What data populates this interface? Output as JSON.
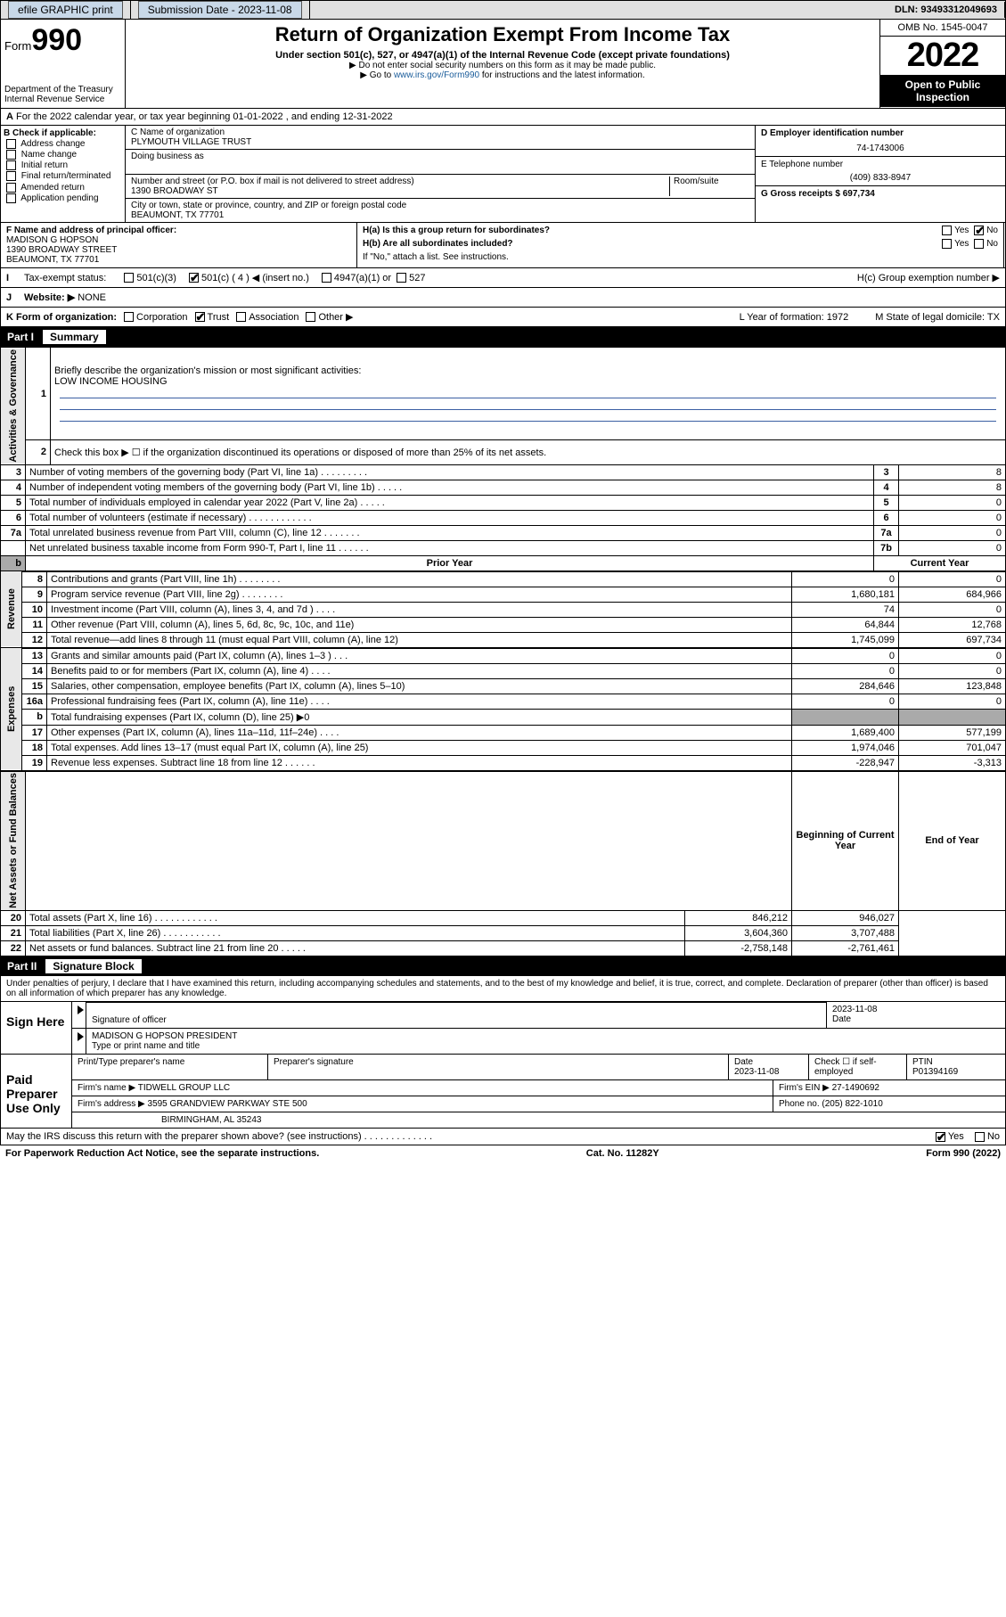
{
  "topbar": {
    "efile": "efile GRAPHIC print",
    "subdate_label": "Submission Date - 2023-11-08",
    "dln": "DLN: 93493312049693"
  },
  "header": {
    "form_word": "Form",
    "form_num": "990",
    "dept": "Department of the Treasury",
    "irs": "Internal Revenue Service",
    "title": "Return of Organization Exempt From Income Tax",
    "sub1": "Under section 501(c), 527, or 4947(a)(1) of the Internal Revenue Code (except private foundations)",
    "sub2": "▶ Do not enter social security numbers on this form as it may be made public.",
    "sub3a": "▶ Go to ",
    "sub3link": "www.irs.gov/Form990",
    "sub3b": " for instructions and the latest information.",
    "omb": "OMB No. 1545-0047",
    "year": "2022",
    "open": "Open to Public Inspection"
  },
  "rowA": "For the 2022 calendar year, or tax year beginning 01-01-2022   , and ending 12-31-2022",
  "colB": {
    "hdr": "B Check if applicable:",
    "items": [
      "Address change",
      "Name change",
      "Initial return",
      "Final return/terminated",
      "Amended return",
      "Application pending"
    ]
  },
  "colC": {
    "c_label": "C Name of organization",
    "c_name": "PLYMOUTH VILLAGE TRUST",
    "dba_label": "Doing business as",
    "addr_label": "Number and street (or P.O. box if mail is not delivered to street address)",
    "room_label": "Room/suite",
    "addr": "1390 BROADWAY ST",
    "city_label": "City or town, state or province, country, and ZIP or foreign postal code",
    "city": "BEAUMONT, TX  77701"
  },
  "colD": {
    "d_label": "D Employer identification number",
    "ein": "74-1743006",
    "e_label": "E Telephone number",
    "phone": "(409) 833-8947",
    "g_label": "G Gross receipts $ 697,734"
  },
  "rowFH": {
    "f_label": "F  Name and address of principal officer:",
    "f_name": "MADISON G HOPSON",
    "f_addr1": "1390 BROADWAY STREET",
    "f_addr2": "BEAUMONT, TX  77701",
    "ha": "H(a)  Is this a group return for subordinates?",
    "hb": "H(b)  Are all subordinates included?",
    "hb_note": "If \"No,\" attach a list. See instructions.",
    "hc": "H(c)  Group exemption number ▶",
    "yes": "Yes",
    "no": "No"
  },
  "taxrow": {
    "label": "Tax-exempt status:",
    "c3": "501(c)(3)",
    "c4": "501(c) ( 4 ) ◀ (insert no.)",
    "a1": "4947(a)(1) or",
    "s527": "527"
  },
  "webrow": {
    "j": "J",
    "label": "Website: ▶",
    "val": "NONE"
  },
  "korg": {
    "k": "K Form of organization:",
    "corp": "Corporation",
    "trust": "Trust",
    "assoc": "Association",
    "other": "Other ▶",
    "l": "L Year of formation: 1972",
    "m": "M State of legal domicile: TX"
  },
  "partI": {
    "num": "Part I",
    "title": "Summary"
  },
  "summary": {
    "q1": "Briefly describe the organization's mission or most significant activities:",
    "mission": "LOW INCOME HOUSING",
    "q2": "Check this box ▶ ☐  if the organization discontinued its operations or disposed of more than 25% of its net assets.",
    "rows_gov": [
      {
        "n": "3",
        "t": "Number of voting members of the governing body (Part VI, line 1a)  .  .  .  .  .  .  .  .  .",
        "r": "3",
        "v": "8"
      },
      {
        "n": "4",
        "t": "Number of independent voting members of the governing body (Part VI, line 1b)  .  .  .  .  .",
        "r": "4",
        "v": "8"
      },
      {
        "n": "5",
        "t": "Total number of individuals employed in calendar year 2022 (Part V, line 2a)  .  .  .  .  .",
        "r": "5",
        "v": "0"
      },
      {
        "n": "6",
        "t": "Total number of volunteers (estimate if necessary)  .  .  .  .  .  .  .  .  .  .  .  .",
        "r": "6",
        "v": "0"
      },
      {
        "n": "7a",
        "t": "Total unrelated business revenue from Part VIII, column (C), line 12  .  .  .  .  .  .  .",
        "r": "7a",
        "v": "0"
      },
      {
        "n": "",
        "t": "Net unrelated business taxable income from Form 990-T, Part I, line 11  .  .  .  .  .  .",
        "r": "7b",
        "v": "0"
      }
    ],
    "hdr_prior": "Prior Year",
    "hdr_curr": "Current Year",
    "rows_rev": [
      {
        "n": "8",
        "t": "Contributions and grants (Part VIII, line 1h)  .  .  .  .  .  .  .  .",
        "p": "0",
        "c": "0"
      },
      {
        "n": "9",
        "t": "Program service revenue (Part VIII, line 2g)  .  .  .  .  .  .  .  .",
        "p": "1,680,181",
        "c": "684,966"
      },
      {
        "n": "10",
        "t": "Investment income (Part VIII, column (A), lines 3, 4, and 7d )  .  .  .  .",
        "p": "74",
        "c": "0"
      },
      {
        "n": "11",
        "t": "Other revenue (Part VIII, column (A), lines 5, 6d, 8c, 9c, 10c, and 11e)",
        "p": "64,844",
        "c": "12,768"
      },
      {
        "n": "12",
        "t": "Total revenue—add lines 8 through 11 (must equal Part VIII, column (A), line 12)",
        "p": "1,745,099",
        "c": "697,734"
      }
    ],
    "rows_exp": [
      {
        "n": "13",
        "t": "Grants and similar amounts paid (Part IX, column (A), lines 1–3 )  .  .  .",
        "p": "0",
        "c": "0"
      },
      {
        "n": "14",
        "t": "Benefits paid to or for members (Part IX, column (A), line 4)  .  .  .  .",
        "p": "0",
        "c": "0"
      },
      {
        "n": "15",
        "t": "Salaries, other compensation, employee benefits (Part IX, column (A), lines 5–10)",
        "p": "284,646",
        "c": "123,848"
      },
      {
        "n": "16a",
        "t": "Professional fundraising fees (Part IX, column (A), line 11e)  .  .  .  .",
        "p": "0",
        "c": "0"
      },
      {
        "n": "b",
        "t": "Total fundraising expenses (Part IX, column (D), line 25) ▶0",
        "p": "",
        "c": "",
        "gray": true
      },
      {
        "n": "17",
        "t": "Other expenses (Part IX, column (A), lines 11a–11d, 11f–24e)  .  .  .  .",
        "p": "1,689,400",
        "c": "577,199"
      },
      {
        "n": "18",
        "t": "Total expenses. Add lines 13–17 (must equal Part IX, column (A), line 25)",
        "p": "1,974,046",
        "c": "701,047"
      },
      {
        "n": "19",
        "t": "Revenue less expenses. Subtract line 18 from line 12  .  .  .  .  .  .",
        "p": "-228,947",
        "c": "-3,313"
      }
    ],
    "hdr_beg": "Beginning of Current Year",
    "hdr_end": "End of Year",
    "rows_net": [
      {
        "n": "20",
        "t": "Total assets (Part X, line 16)  .  .  .  .  .  .  .  .  .  .  .  .",
        "p": "846,212",
        "c": "946,027"
      },
      {
        "n": "21",
        "t": "Total liabilities (Part X, line 26)  .  .  .  .  .  .  .  .  .  .  .",
        "p": "3,604,360",
        "c": "3,707,488"
      },
      {
        "n": "22",
        "t": "Net assets or fund balances. Subtract line 21 from line 20  .  .  .  .  .",
        "p": "-2,758,148",
        "c": "-2,761,461"
      }
    ],
    "sides": {
      "gov": "Activities & Governance",
      "rev": "Revenue",
      "exp": "Expenses",
      "net": "Net Assets or Fund Balances"
    }
  },
  "partII": {
    "num": "Part II",
    "title": "Signature Block"
  },
  "decl": "Under penalties of perjury, I declare that I have examined this return, including accompanying schedules and statements, and to the best of my knowledge and belief, it is true, correct, and complete. Declaration of preparer (other than officer) is based on all information of which preparer has any knowledge.",
  "sign": {
    "here": "Sign Here",
    "sigoff": "Signature of officer",
    "date": "2023-11-08",
    "date_label": "Date",
    "name": "MADISON G HOPSON  PRESIDENT",
    "name_label": "Type or print name and title"
  },
  "paid": {
    "here": "Paid Preparer Use Only",
    "r1": {
      "c1": "Print/Type preparer's name",
      "c2": "Preparer's signature",
      "c3l": "Date",
      "c3v": "2023-11-08",
      "c4": "Check ☐ if self-employed",
      "c5l": "PTIN",
      "c5v": "P01394169"
    },
    "r2": {
      "c1": "Firm's name    ▶ TIDWELL GROUP LLC",
      "c2": "Firm's EIN ▶ 27-1490692"
    },
    "r3": {
      "c1": "Firm's address ▶ 3595 GRANDVIEW PARKWAY STE 500",
      "c2": "Phone no. (205) 822-1010"
    },
    "r4": "BIRMINGHAM, AL  35243"
  },
  "mayirs": {
    "q": "May the IRS discuss this return with the preparer shown above? (see instructions)  .  .  .  .  .  .  .  .  .  .  .  .  .",
    "yes": "Yes",
    "no": "No"
  },
  "foot": {
    "l": "For Paperwork Reduction Act Notice, see the separate instructions.",
    "m": "Cat. No. 11282Y",
    "r": "Form 990 (2022)"
  }
}
